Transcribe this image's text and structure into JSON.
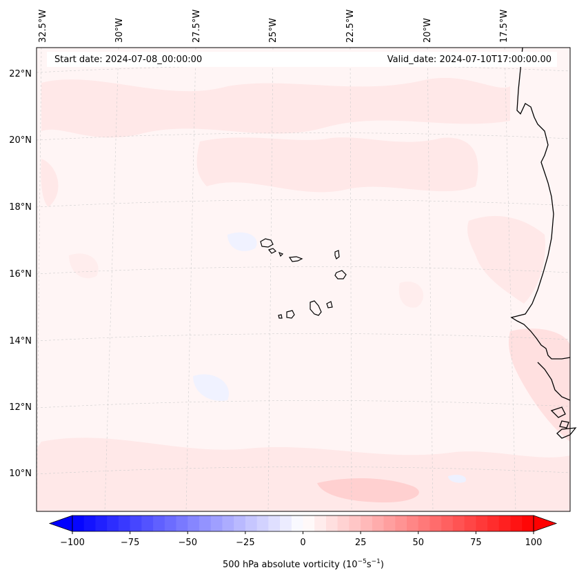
{
  "map": {
    "start_label": "Start date: 2024-07-08_00:00:00",
    "valid_label": "Valid_date: 2024-07-10T17:00:00.00",
    "lon_labels": [
      "32.5°W",
      "30°W",
      "27.5°W",
      "25°W",
      "22.5°W",
      "20°W",
      "17.5°W"
    ],
    "lat_labels": [
      "22°N",
      "20°N",
      "18°N",
      "16°N",
      "14°N",
      "12°N",
      "10°N"
    ],
    "colors": {
      "background": "#fff5f5",
      "light_red": "#ffe5e5",
      "mid_red": "#ffcccc",
      "light_blue": "#f0f3ff",
      "coast": "#000000",
      "grid": "#cccccc"
    }
  },
  "colorbar": {
    "ticks": [
      "−100",
      "−75",
      "−50",
      "−25",
      "0",
      "25",
      "50",
      "75",
      "100"
    ],
    "tick_values": [
      -100,
      -75,
      -50,
      -25,
      0,
      25,
      50,
      75,
      100
    ],
    "min": -100,
    "max": 100,
    "levels": 40,
    "label_main": "500 hPa absolute vorticity (10",
    "label_exp1": "−5",
    "label_mid": "s",
    "label_exp2": "−1",
    "label_end": ")",
    "colors": {
      "negative": "#0000ff",
      "neutral": "#ffffff",
      "positive": "#ff0000"
    }
  }
}
